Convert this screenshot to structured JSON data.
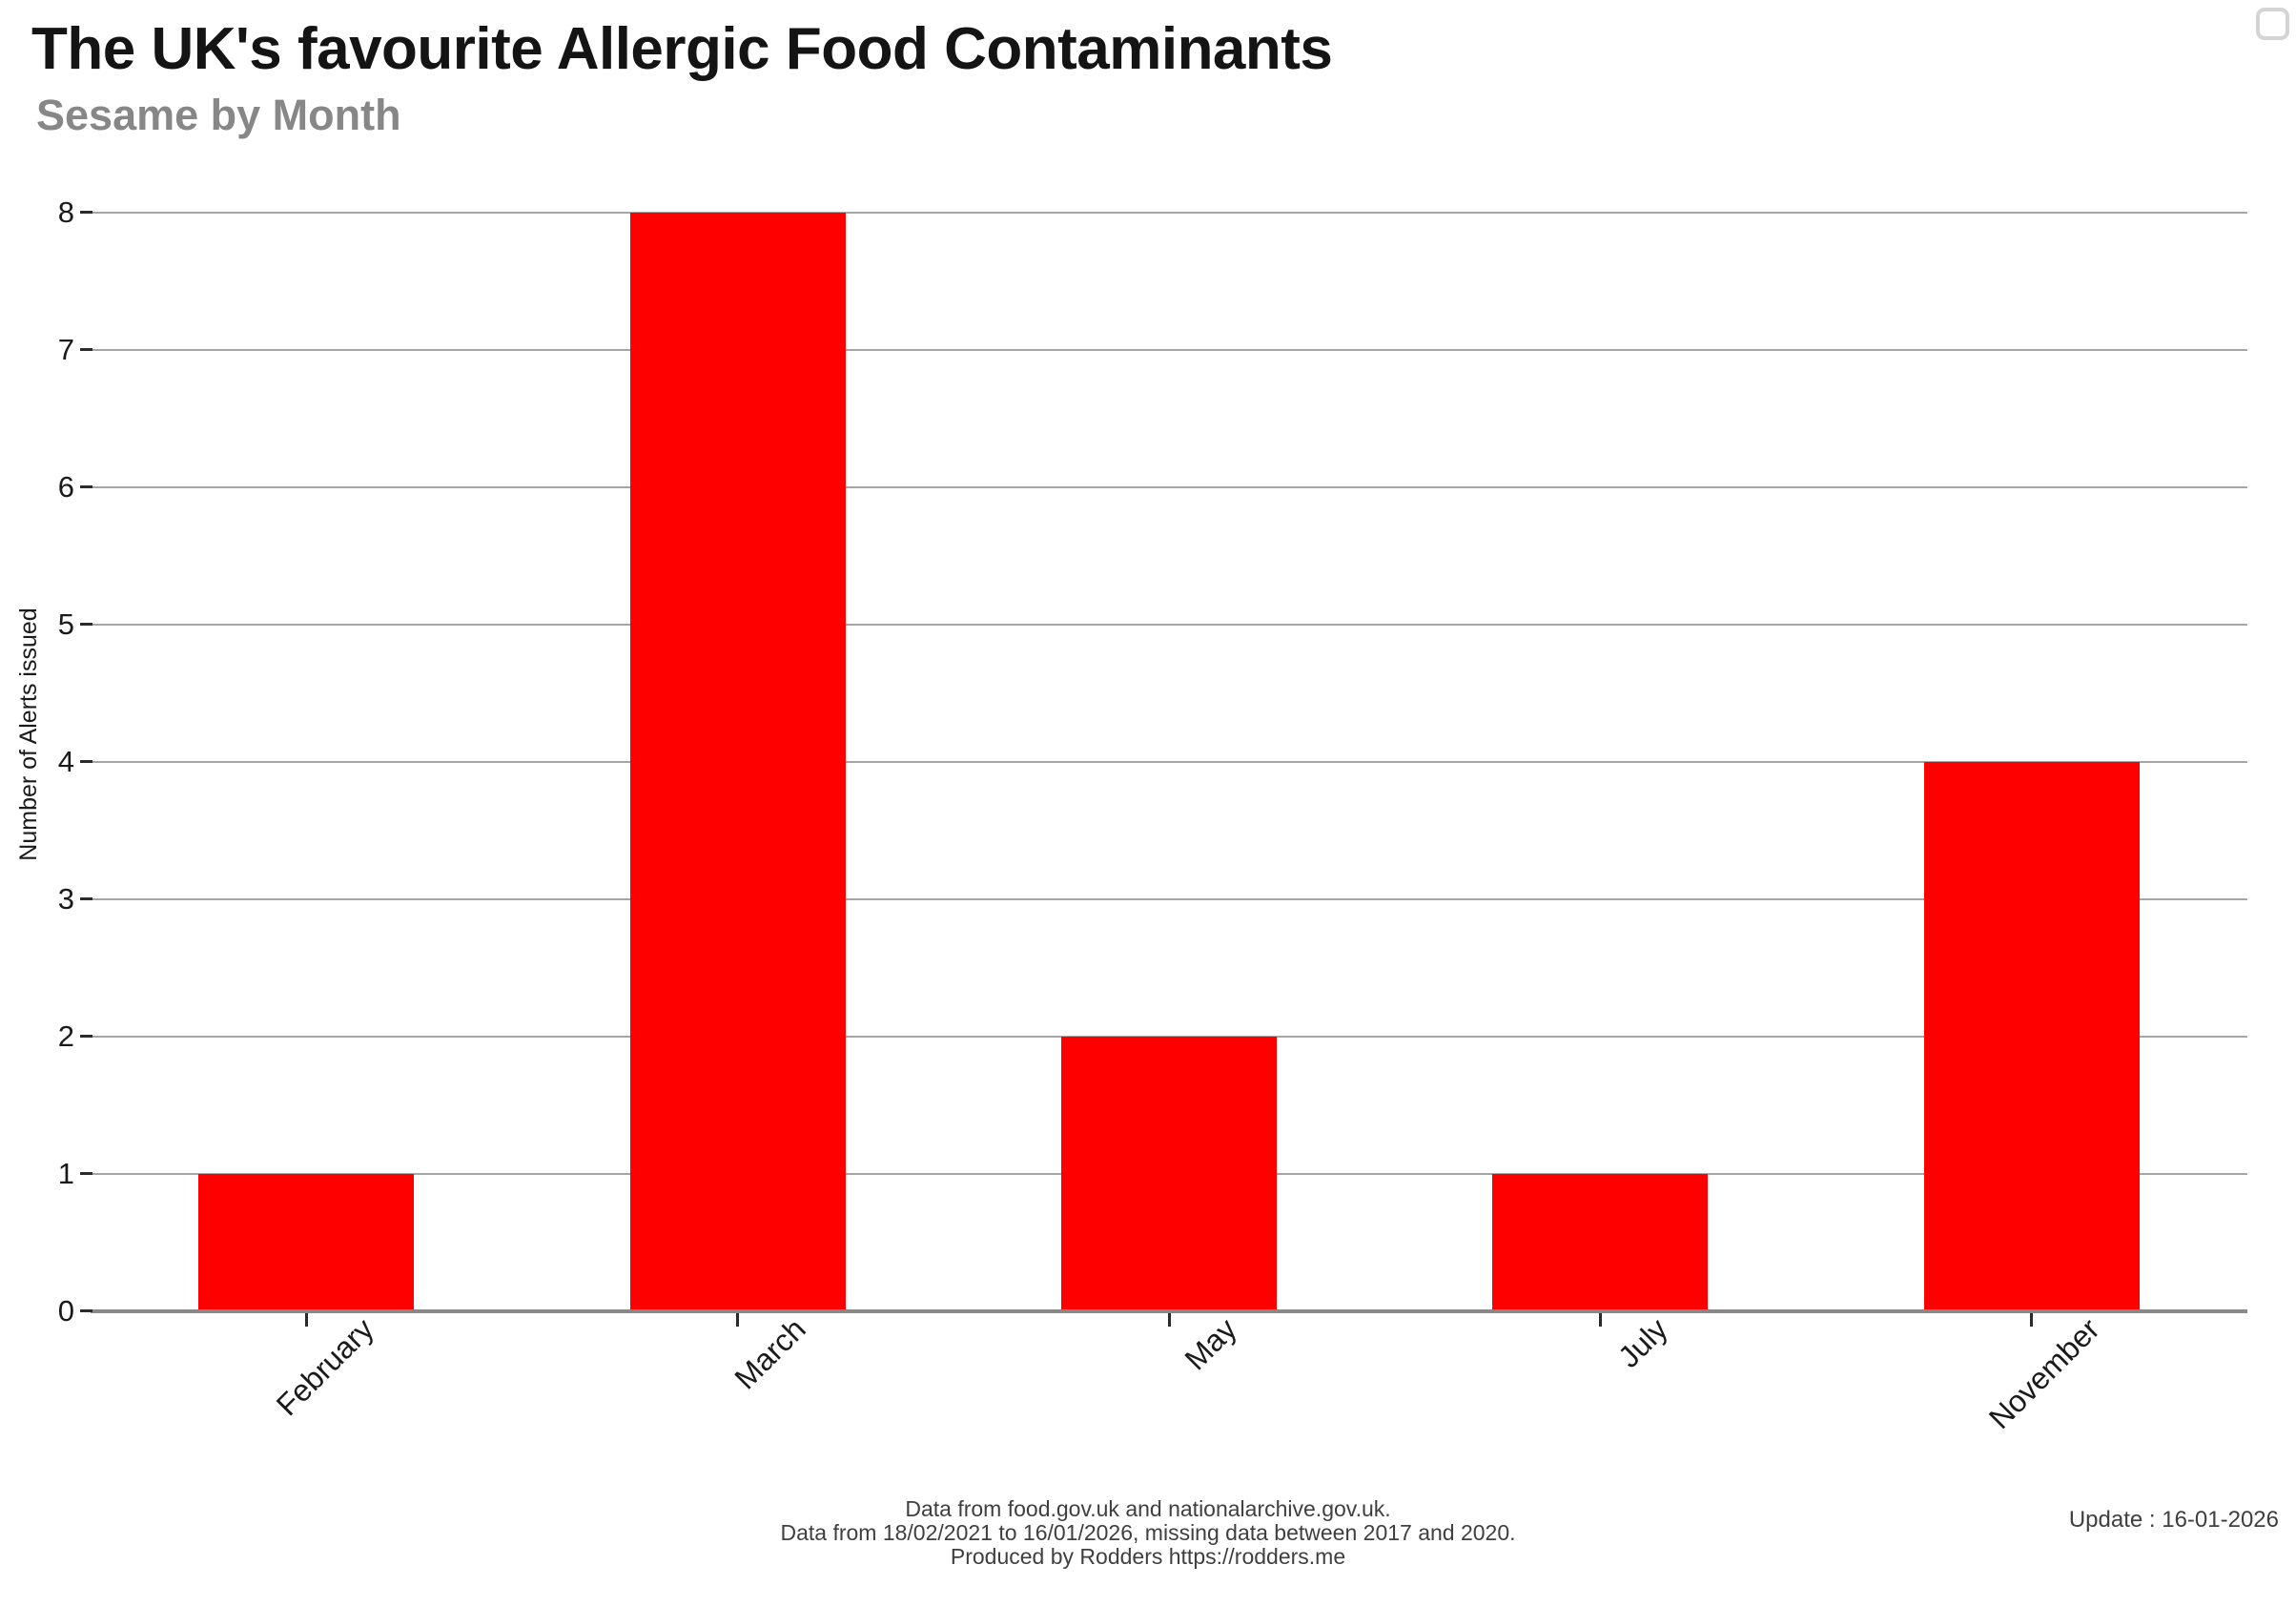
{
  "header": {
    "title": "The UK's favourite Allergic Food Contaminants",
    "subtitle": "Sesame by Month"
  },
  "toolbar": {
    "fullscreen_icon": "rounded-square-outline",
    "icon_color": "#d4d4d4"
  },
  "chart_data": {
    "type": "bar",
    "title": "The UK's favourite Allergic Food Contaminants",
    "subtitle": "Sesame by Month",
    "categories": [
      "February",
      "March",
      "May",
      "July",
      "November"
    ],
    "values": [
      1,
      8,
      2,
      1,
      4
    ],
    "xlabel": "",
    "ylabel": "Number of Alerts issued",
    "ylim": [
      0,
      8
    ],
    "yticks": [
      0,
      1,
      2,
      3,
      4,
      5,
      6,
      7,
      8
    ],
    "x_tick_rotation_deg": 45,
    "bar_color": "#ff0000",
    "grid": true,
    "gridline_color": "#a6a6a6",
    "axis_line_color": "#888888",
    "tick_color": "#2b2b2b",
    "legend": false
  },
  "footer": {
    "lines": [
      "Data from food.gov.uk and nationalarchive.gov.uk.",
      "Data from 18/02/2021 to 16/01/2026, missing data between 2017 and 2020.",
      "Produced by Rodders https://rodders.me"
    ],
    "update": "Update : 16-01-2026"
  }
}
